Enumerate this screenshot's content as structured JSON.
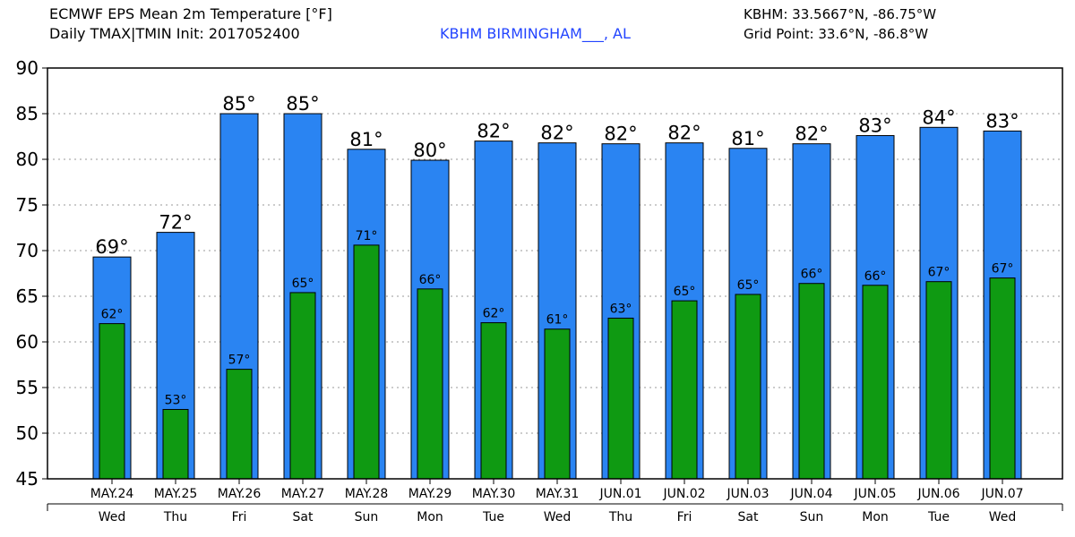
{
  "header": {
    "title_line1": "ECMWF EPS Mean 2m Temperature [°F]",
    "title_line2": "Daily TMAX|TMIN Init: 2017052400",
    "station": "KBHM BIRMINGHAM___, AL",
    "station_coords": "KBHM: 33.5667°N, -86.75°W",
    "grid_point": "Grid Point: 33.6°N, -86.8°W"
  },
  "colors": {
    "tmax": "#2a84f2",
    "tmin": "#0f9a12",
    "grid": "#9a9a9a",
    "station_text": "#2244ff"
  },
  "chart_data": {
    "type": "bar",
    "title": "ECMWF EPS Mean 2m Temperature [°F]",
    "subtitle": "Daily TMAX|TMIN Init: 2017052400",
    "xlabel": "",
    "ylabel": "",
    "ylim": [
      45,
      90
    ],
    "yticks": [
      45,
      50,
      55,
      60,
      65,
      70,
      75,
      80,
      85,
      90
    ],
    "grid": true,
    "categories": [
      "MAY.24",
      "MAY.25",
      "MAY.26",
      "MAY.27",
      "MAY.28",
      "MAY.29",
      "MAY.30",
      "MAY.31",
      "JUN.01",
      "JUN.02",
      "JUN.03",
      "JUN.04",
      "JUN.05",
      "JUN.06",
      "JUN.07"
    ],
    "weekdays": [
      "Wed",
      "Thu",
      "Fri",
      "Sat",
      "Sun",
      "Mon",
      "Tue",
      "Wed",
      "Thu",
      "Fri",
      "Sat",
      "Sun",
      "Mon",
      "Tue",
      "Wed"
    ],
    "series": [
      {
        "name": "TMAX",
        "values": [
          69.3,
          72.0,
          85.0,
          85.0,
          81.1,
          79.9,
          82.0,
          81.8,
          81.7,
          81.8,
          81.2,
          81.7,
          82.6,
          83.5,
          83.1
        ],
        "labels": [
          "69°",
          "72°",
          "85°",
          "85°",
          "81°",
          "80°",
          "82°",
          "82°",
          "82°",
          "82°",
          "81°",
          "82°",
          "83°",
          "84°",
          "83°"
        ]
      },
      {
        "name": "TMIN",
        "values": [
          62.0,
          52.6,
          57.0,
          65.4,
          70.6,
          65.8,
          62.1,
          61.4,
          62.6,
          64.5,
          65.2,
          66.4,
          66.2,
          66.6,
          67.0
        ],
        "labels": [
          "62°",
          "53°",
          "57°",
          "65°",
          "71°",
          "66°",
          "62°",
          "61°",
          "63°",
          "65°",
          "65°",
          "66°",
          "66°",
          "67°",
          "67°"
        ]
      }
    ]
  }
}
